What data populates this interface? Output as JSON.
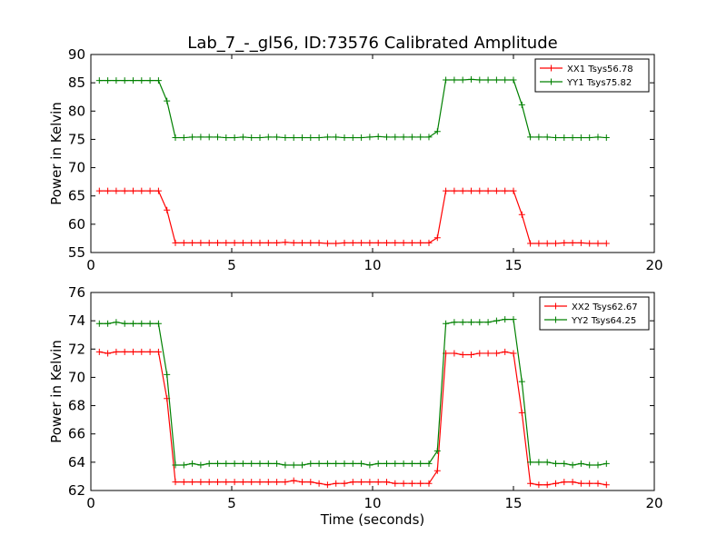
{
  "figure": {
    "title": "Lab_7_-_gl56, ID:73576 Calibrated Amplitude"
  },
  "chart_data": [
    {
      "type": "line",
      "title": "Lab_7_-_gl56, ID:73576 Calibrated Amplitude",
      "xlabel": "",
      "ylabel": "Power in Kelvin",
      "xlim": [
        0,
        20
      ],
      "ylim": [
        55,
        90
      ],
      "xticks": [
        0,
        5,
        10,
        15,
        20
      ],
      "yticks": [
        55,
        60,
        65,
        70,
        75,
        80,
        85,
        90
      ],
      "legend_position": "top-right",
      "grid": false,
      "x": [
        0.3,
        0.6,
        0.9,
        1.2,
        1.5,
        1.8,
        2.1,
        2.4,
        2.7,
        3.0,
        3.3,
        3.6,
        3.9,
        4.2,
        4.5,
        4.8,
        5.1,
        5.4,
        5.7,
        6.0,
        6.3,
        6.6,
        6.9,
        7.2,
        7.5,
        7.8,
        8.1,
        8.4,
        8.7,
        9.0,
        9.3,
        9.6,
        9.9,
        10.2,
        10.5,
        10.8,
        11.1,
        11.4,
        11.7,
        12.0,
        12.3,
        12.6,
        12.9,
        13.2,
        13.5,
        13.8,
        14.1,
        14.4,
        14.7,
        15.0,
        15.3,
        15.6,
        15.9,
        16.2,
        16.5,
        16.8,
        17.1,
        17.4,
        17.7,
        18.0,
        18.3
      ],
      "series": [
        {
          "name": "XX1 Tsys56.78",
          "color": "#ff0000",
          "values": [
            65.9,
            65.9,
            65.9,
            65.9,
            65.9,
            65.9,
            65.9,
            65.9,
            62.5,
            56.7,
            56.7,
            56.7,
            56.7,
            56.7,
            56.7,
            56.7,
            56.7,
            56.7,
            56.7,
            56.7,
            56.7,
            56.7,
            56.8,
            56.7,
            56.7,
            56.7,
            56.7,
            56.6,
            56.6,
            56.7,
            56.7,
            56.7,
            56.7,
            56.7,
            56.7,
            56.7,
            56.7,
            56.7,
            56.7,
            56.7,
            57.6,
            65.9,
            65.9,
            65.9,
            65.9,
            65.9,
            65.9,
            65.9,
            65.9,
            65.9,
            61.7,
            56.6,
            56.6,
            56.6,
            56.6,
            56.7,
            56.7,
            56.7,
            56.6,
            56.6,
            56.6
          ]
        },
        {
          "name": "YY1 Tsys75.82",
          "color": "#008000",
          "values": [
            85.4,
            85.4,
            85.4,
            85.4,
            85.4,
            85.4,
            85.4,
            85.4,
            81.8,
            75.3,
            75.3,
            75.4,
            75.4,
            75.4,
            75.4,
            75.3,
            75.3,
            75.4,
            75.3,
            75.3,
            75.4,
            75.4,
            75.3,
            75.3,
            75.3,
            75.3,
            75.3,
            75.4,
            75.4,
            75.3,
            75.3,
            75.3,
            75.4,
            75.5,
            75.4,
            75.4,
            75.4,
            75.4,
            75.4,
            75.4,
            76.4,
            85.5,
            85.5,
            85.5,
            85.6,
            85.5,
            85.5,
            85.5,
            85.5,
            85.5,
            81.1,
            75.4,
            75.4,
            75.4,
            75.3,
            75.3,
            75.3,
            75.3,
            75.3,
            75.4,
            75.3
          ]
        }
      ]
    },
    {
      "type": "line",
      "title": "",
      "xlabel": "Time (seconds)",
      "ylabel": "Power in Kelvin",
      "xlim": [
        0,
        20
      ],
      "ylim": [
        62,
        76
      ],
      "xticks": [
        0,
        5,
        10,
        15,
        20
      ],
      "yticks": [
        62,
        64,
        66,
        68,
        70,
        72,
        74,
        76
      ],
      "legend_position": "top-right",
      "grid": false,
      "x": [
        0.3,
        0.6,
        0.9,
        1.2,
        1.5,
        1.8,
        2.1,
        2.4,
        2.7,
        3.0,
        3.3,
        3.6,
        3.9,
        4.2,
        4.5,
        4.8,
        5.1,
        5.4,
        5.7,
        6.0,
        6.3,
        6.6,
        6.9,
        7.2,
        7.5,
        7.8,
        8.1,
        8.4,
        8.7,
        9.0,
        9.3,
        9.6,
        9.9,
        10.2,
        10.5,
        10.8,
        11.1,
        11.4,
        11.7,
        12.0,
        12.3,
        12.6,
        12.9,
        13.2,
        13.5,
        13.8,
        14.1,
        14.4,
        14.7,
        15.0,
        15.3,
        15.6,
        15.9,
        16.2,
        16.5,
        16.8,
        17.1,
        17.4,
        17.7,
        18.0,
        18.3
      ],
      "series": [
        {
          "name": "XX2 Tsys62.67",
          "color": "#ff0000",
          "values": [
            71.8,
            71.7,
            71.8,
            71.8,
            71.8,
            71.8,
            71.8,
            71.8,
            68.5,
            62.6,
            62.6,
            62.6,
            62.6,
            62.6,
            62.6,
            62.6,
            62.6,
            62.6,
            62.6,
            62.6,
            62.6,
            62.6,
            62.6,
            62.7,
            62.6,
            62.6,
            62.5,
            62.4,
            62.5,
            62.5,
            62.6,
            62.6,
            62.6,
            62.6,
            62.6,
            62.5,
            62.5,
            62.5,
            62.5,
            62.5,
            63.4,
            71.7,
            71.7,
            71.6,
            71.6,
            71.7,
            71.7,
            71.7,
            71.8,
            71.7,
            67.5,
            62.5,
            62.4,
            62.4,
            62.5,
            62.6,
            62.6,
            62.5,
            62.5,
            62.5,
            62.4
          ]
        },
        {
          "name": "YY2 Tsys64.25",
          "color": "#008000",
          "values": [
            73.8,
            73.8,
            73.9,
            73.8,
            73.8,
            73.8,
            73.8,
            73.8,
            70.2,
            63.8,
            63.8,
            63.9,
            63.8,
            63.9,
            63.9,
            63.9,
            63.9,
            63.9,
            63.9,
            63.9,
            63.9,
            63.9,
            63.8,
            63.8,
            63.8,
            63.9,
            63.9,
            63.9,
            63.9,
            63.9,
            63.9,
            63.9,
            63.8,
            63.9,
            63.9,
            63.9,
            63.9,
            63.9,
            63.9,
            63.9,
            64.8,
            73.8,
            73.9,
            73.9,
            73.9,
            73.9,
            73.9,
            74.0,
            74.1,
            74.1,
            69.7,
            64.0,
            64.0,
            64.0,
            63.9,
            63.9,
            63.8,
            63.9,
            63.8,
            63.8,
            63.9
          ]
        }
      ]
    }
  ]
}
